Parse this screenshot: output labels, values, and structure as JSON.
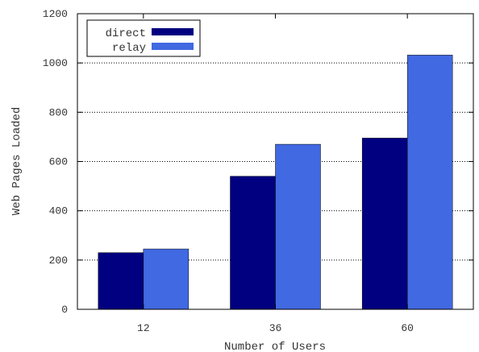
{
  "chart_data": {
    "type": "bar",
    "title": "",
    "xlabel": "Number of Users",
    "ylabel": "Web Pages Loaded",
    "categories": [
      "12",
      "36",
      "60"
    ],
    "ylim": [
      0,
      1200
    ],
    "yticks": [
      "0",
      "200",
      "400",
      "600",
      "800",
      "1000",
      "1200"
    ],
    "grid": true,
    "legend_position": "top-left",
    "series": [
      {
        "name": "direct",
        "values": [
          230,
          540,
          695
        ],
        "color": "#000080"
      },
      {
        "name": "relay",
        "values": [
          245,
          670,
          1032
        ],
        "color": "#4169E1"
      }
    ]
  }
}
